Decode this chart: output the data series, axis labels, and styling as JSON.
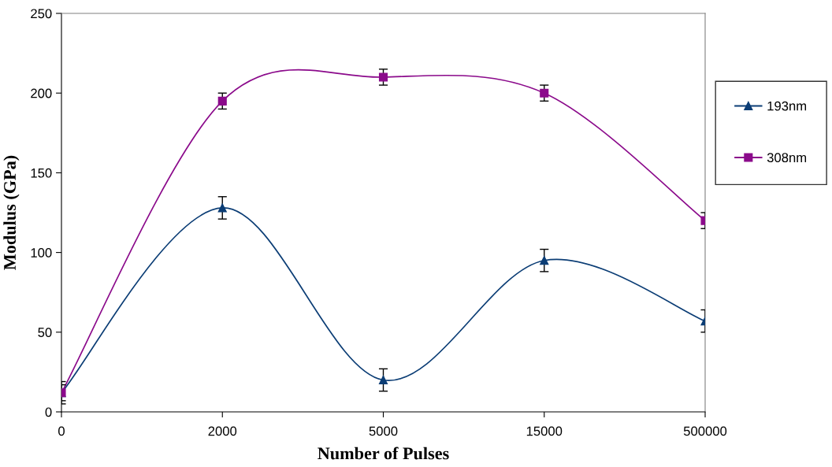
{
  "chart_data": {
    "type": "line",
    "xlabel": "Number of Pulses",
    "ylabel": "Modulus (GPa)",
    "categories": [
      "0",
      "2000",
      "5000",
      "15000",
      "500000"
    ],
    "series": [
      {
        "name": "193nm",
        "color": "#0b3d75",
        "marker": "triangle",
        "values": [
          12,
          128,
          20,
          95,
          57
        ],
        "errors": [
          7,
          7,
          7,
          7,
          7
        ]
      },
      {
        "name": "308nm",
        "color": "#8b0a8b",
        "marker": "square",
        "values": [
          12,
          195,
          210,
          200,
          120
        ],
        "errors": [
          5,
          5,
          5,
          5,
          5
        ]
      }
    ],
    "ylim": [
      0,
      250
    ],
    "yticks": [
      0,
      50,
      100,
      150,
      200,
      250
    ],
    "grid": false,
    "legend": "right"
  }
}
